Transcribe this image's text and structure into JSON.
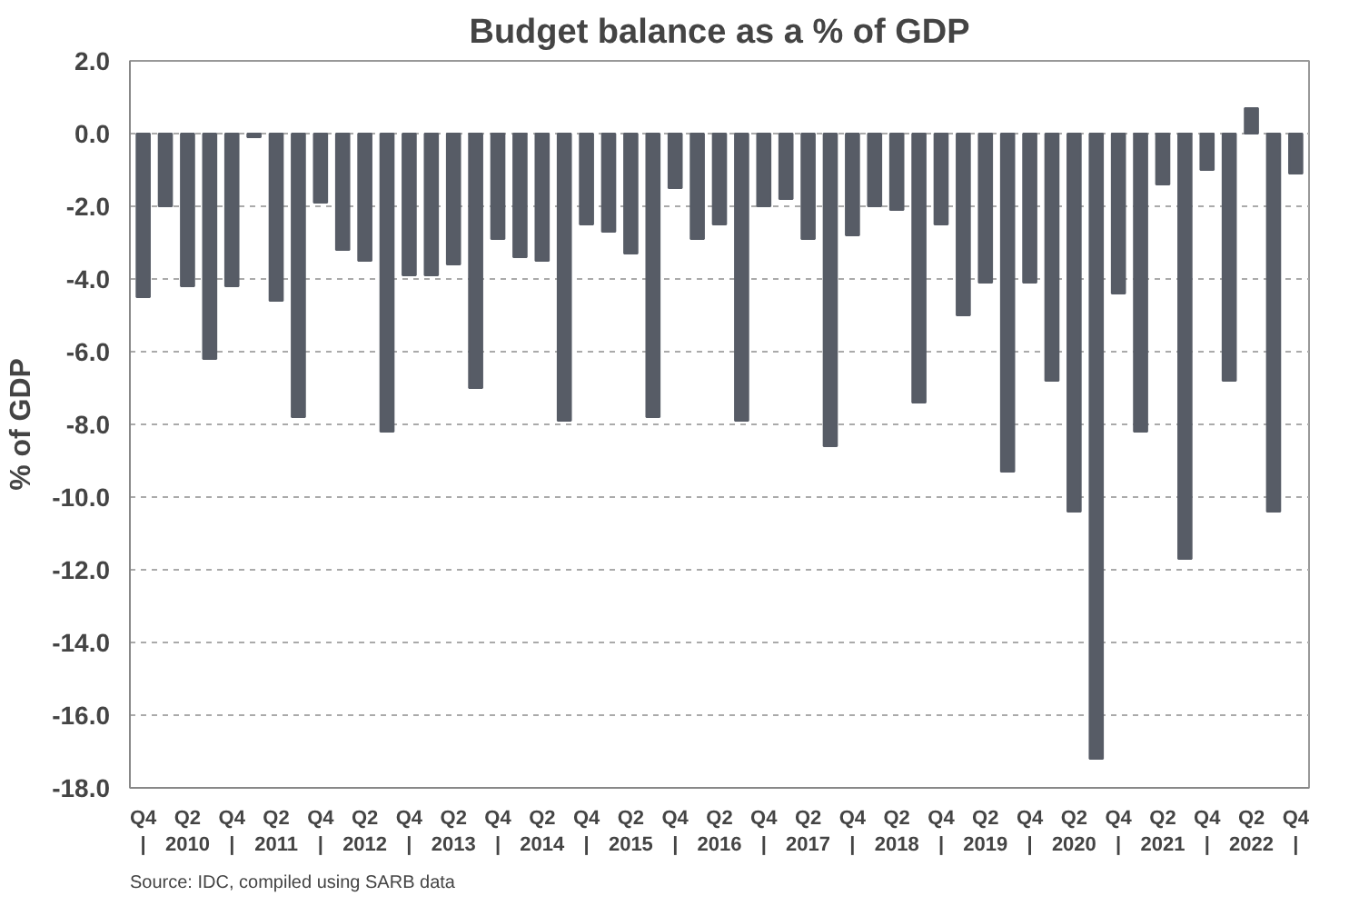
{
  "chart_data": {
    "type": "bar",
    "title": "Budget balance as a % of GDP",
    "ylabel": "% of GDP",
    "categories": [
      "Q4\n|",
      null,
      "Q2\n2010",
      null,
      "Q4\n|",
      null,
      "Q2\n2011",
      null,
      "Q4\n|",
      null,
      "Q2\n2012",
      null,
      "Q4\n|",
      null,
      "Q2\n2013",
      null,
      "Q4\n|",
      null,
      "Q2\n2014",
      null,
      "Q4\n|",
      null,
      "Q2\n2015",
      null,
      "Q4\n|",
      null,
      "Q2\n2016",
      null,
      "Q4\n|",
      null,
      "Q2\n2017",
      null,
      "Q4\n|",
      null,
      "Q2\n2018",
      null,
      "Q4\n|",
      null,
      "Q2\n2019",
      null,
      "Q4\n|",
      null,
      "Q2\n2020",
      null,
      "Q4\n|",
      null,
      "Q2\n2021",
      null,
      "Q4\n|",
      null,
      "Q2\n2022",
      null,
      "Q4\n|"
    ],
    "values": [
      -4.5,
      -2.0,
      -4.2,
      -6.2,
      -4.2,
      -0.1,
      -4.6,
      -7.8,
      -1.9,
      -3.2,
      -3.5,
      -8.2,
      -3.9,
      -3.9,
      -3.6,
      -7.0,
      -2.9,
      -3.4,
      -3.5,
      -7.9,
      -2.5,
      -2.7,
      -3.3,
      -7.8,
      -1.5,
      -2.9,
      -2.5,
      -7.9,
      -2.0,
      -1.8,
      -2.9,
      -8.6,
      -2.8,
      -2.0,
      -2.1,
      -7.4,
      -2.5,
      -5.0,
      -4.1,
      -9.3,
      -4.1,
      -6.8,
      -10.4,
      -17.2,
      -4.4,
      -8.2,
      -1.4,
      -11.7,
      -1.0,
      -6.8,
      0.7,
      -10.4,
      -1.1
    ],
    "color": "#575c66",
    "ylim": [
      -18,
      2
    ],
    "yticks": [
      {
        "value": -18,
        "label": "-18.0"
      },
      {
        "value": -16,
        "label": "-16.0"
      },
      {
        "value": -14,
        "label": "-14.0"
      },
      {
        "value": -12,
        "label": "-12.0"
      },
      {
        "value": -10,
        "label": "-10.0"
      },
      {
        "value": -8,
        "label": "-8.0"
      },
      {
        "value": -6,
        "label": "-6.0"
      },
      {
        "value": -4,
        "label": "-4.0"
      },
      {
        "value": -2,
        "label": "-2.0"
      },
      {
        "value": 0,
        "label": "0.0"
      },
      {
        "value": 2,
        "label": "2.0"
      }
    ],
    "grid": "y",
    "annotations": [
      "Source: IDC, compiled using SARB data"
    ]
  }
}
